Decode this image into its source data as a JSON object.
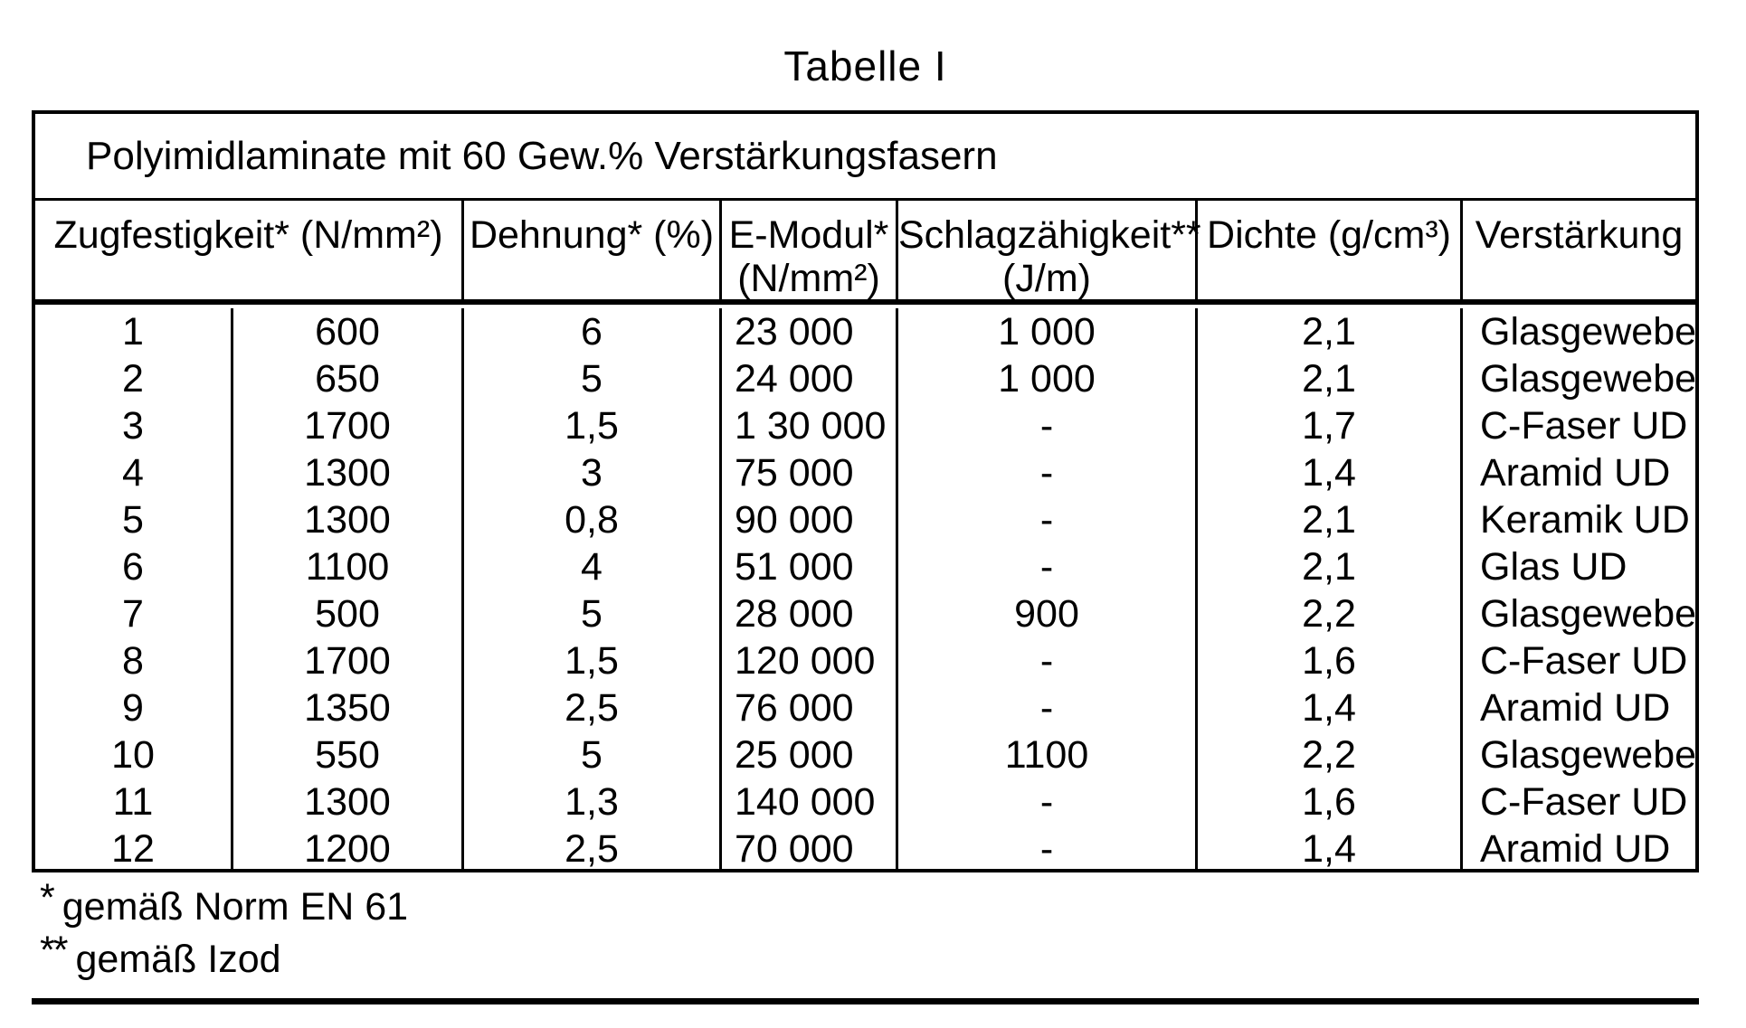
{
  "page": {
    "title": "Tabelle I"
  },
  "table": {
    "caption": "Polyimidlaminate mit 60 Gew.% Verstärkungsfasern",
    "headers": [
      {
        "line1": "Zugfestigkeit* (N/mm²)",
        "line2": ""
      },
      {
        "line1": "Dehnung* (%)",
        "line2": ""
      },
      {
        "line1": "E-Modul*",
        "line2": "(N/mm²)"
      },
      {
        "line1": "Schlagzähigkeit**",
        "line2": "(J/m)"
      },
      {
        "line1": "Dichte (g/cm³)",
        "line2": ""
      },
      {
        "line1": "Verstärkung",
        "line2": ""
      }
    ],
    "columns": [
      "Nr.",
      "Zugfestigkeit",
      "Dehnung",
      "E-Modul",
      "Schlagzähigkeit",
      "Dichte",
      "Verstärkung"
    ],
    "rows": [
      [
        "1",
        "600",
        "6",
        "23 000",
        "1 000",
        "2,1",
        "Glasgewebe"
      ],
      [
        "2",
        "650",
        "5",
        "24 000",
        "1 000",
        "2,1",
        "Glasgewebe"
      ],
      [
        "3",
        "1700",
        "1,5",
        "1 30 000",
        "-",
        "1,7",
        "C-Faser UD"
      ],
      [
        "4",
        "1300",
        "3",
        "75 000",
        "-",
        "1,4",
        "Aramid UD"
      ],
      [
        "5",
        "1300",
        "0,8",
        "90 000",
        "-",
        "2,1",
        "Keramik UD"
      ],
      [
        "6",
        "1100",
        "4",
        "51 000",
        "-",
        "2,1",
        "Glas UD"
      ],
      [
        "7",
        "500",
        "5",
        "28 000",
        "900",
        "2,2",
        "Glasgewebe"
      ],
      [
        "8",
        "1700",
        "1,5",
        "120 000",
        "-",
        "1,6",
        "C-Faser UD"
      ],
      [
        "9",
        "1350",
        "2,5",
        "76 000",
        "-",
        "1,4",
        "Aramid UD"
      ],
      [
        "10",
        "550",
        "5",
        "25 000",
        "1100",
        "2,2",
        "Glasgewebe"
      ],
      [
        "11",
        "1300",
        "1,3",
        "140 000",
        "-",
        "1,6",
        "C-Faser UD"
      ],
      [
        "12",
        "1200",
        "2,5",
        "70 000",
        "-",
        "1,4",
        "Aramid UD"
      ]
    ],
    "footnotes": [
      {
        "marker": "*",
        "text": "gemäß Norm EN 61"
      },
      {
        "marker": "**",
        "text": "gemäß Izod"
      }
    ]
  },
  "colors": {
    "ink": "#000000",
    "paper": "#ffffff"
  }
}
